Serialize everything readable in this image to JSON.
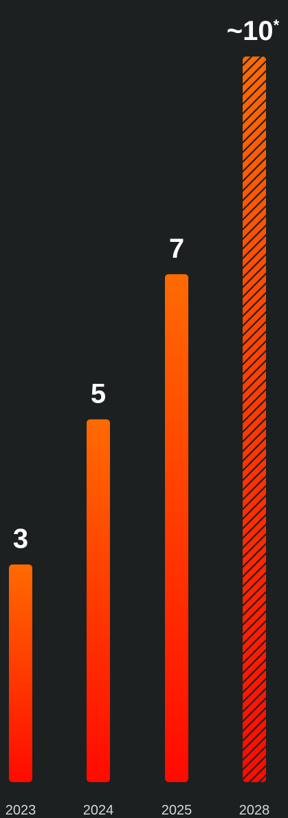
{
  "chart_data": {
    "type": "bar",
    "categories": [
      "2023",
      "2024",
      "2025",
      "2028"
    ],
    "values": [
      3,
      5,
      7,
      10
    ],
    "value_labels": [
      "3",
      "5",
      "7",
      "~10"
    ],
    "projected": [
      false,
      false,
      false,
      true
    ],
    "projection_marker": "*",
    "title": "",
    "xlabel": "",
    "ylabel": "",
    "grid": false,
    "colors": {
      "background": "#1c2020",
      "bar_top": "#ff6a00",
      "bar_bottom": "#ff0a00",
      "hatch": "#1c2020",
      "value_text": "#ffffff",
      "tick_text": "#d4d6d6"
    }
  }
}
